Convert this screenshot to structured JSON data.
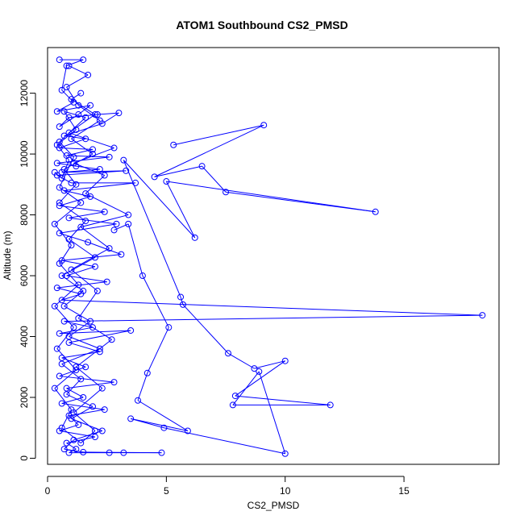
{
  "chart_data": {
    "type": "line",
    "title": "ATOM1 Southbound CS2_PMSD",
    "xlabel": "CS2_PMSD",
    "ylabel": "Altitude (m)",
    "xlim": [
      0,
      19
    ],
    "ylim": [
      -200,
      13500
    ],
    "x_ticks": [
      0,
      5,
      10,
      15
    ],
    "y_ticks": [
      0,
      2000,
      4000,
      6000,
      8000,
      10000,
      12000
    ],
    "marker": "open-circle",
    "line_color": "#0000ff",
    "grid": false,
    "series": [
      {
        "values": [
          [
            0.5,
            13100
          ],
          [
            1.5,
            13100
          ],
          [
            0.8,
            12900
          ],
          [
            0.6,
            12100
          ],
          [
            1.1,
            11700
          ],
          [
            0.4,
            11400
          ],
          [
            1.8,
            11600
          ],
          [
            1.3,
            11300
          ],
          [
            0.5,
            10900
          ],
          [
            0.9,
            11200
          ],
          [
            2.1,
            11300
          ],
          [
            3.0,
            11350
          ],
          [
            2.3,
            11000
          ],
          [
            0.7,
            10600
          ],
          [
            1.6,
            10500
          ],
          [
            0.5,
            10200
          ],
          [
            1.9,
            10150
          ],
          [
            0.8,
            9950
          ],
          [
            2.6,
            9900
          ],
          [
            0.4,
            9700
          ],
          [
            1.2,
            9600
          ],
          [
            2.2,
            9500
          ],
          [
            0.6,
            9400
          ],
          [
            3.3,
            9450
          ],
          [
            0.4,
            9300
          ],
          [
            1.0,
            9050
          ],
          [
            3.7,
            9050
          ],
          [
            0.7,
            8800
          ],
          [
            1.8,
            8600
          ],
          [
            0.5,
            8300
          ],
          [
            2.4,
            8100
          ],
          [
            0.9,
            7900
          ],
          [
            2.9,
            7700
          ],
          [
            0.5,
            7400
          ],
          [
            1.7,
            7100
          ],
          [
            3.1,
            6700
          ],
          [
            0.6,
            6500
          ],
          [
            2.0,
            6300
          ],
          [
            0.8,
            6000
          ],
          [
            2.5,
            5800
          ],
          [
            0.4,
            5600
          ],
          [
            1.4,
            5400
          ],
          [
            0.6,
            5200
          ],
          [
            18.3,
            4700
          ],
          [
            0.7,
            4500
          ],
          [
            1.9,
            4300
          ],
          [
            0.5,
            4100
          ],
          [
            3.5,
            4200
          ],
          [
            0.9,
            3800
          ],
          [
            2.2,
            3500
          ],
          [
            0.6,
            3300
          ],
          [
            1.6,
            3000
          ],
          [
            0.5,
            2700
          ],
          [
            2.8,
            2500
          ],
          [
            0.8,
            2300
          ],
          [
            1.5,
            2000
          ],
          [
            0.6,
            1800
          ],
          [
            2.4,
            1600
          ],
          [
            0.9,
            1400
          ],
          [
            1.3,
            1100
          ],
          [
            0.5,
            900
          ],
          [
            2.0,
            700
          ],
          [
            0.8,
            500
          ],
          [
            1.2,
            300
          ],
          [
            0.9,
            180
          ],
          [
            2.6,
            180
          ],
          [
            3.2,
            180
          ],
          [
            4.8,
            180
          ],
          [
            1.5,
            200
          ],
          [
            0.7,
            300
          ],
          [
            1.1,
            600
          ],
          [
            2.3,
            900
          ],
          [
            1.0,
            1300
          ],
          [
            1.9,
            1700
          ],
          [
            0.8,
            2100
          ],
          [
            1.4,
            2600
          ],
          [
            0.6,
            3100
          ],
          [
            2.2,
            3600
          ],
          [
            0.9,
            4000
          ],
          [
            1.8,
            4500
          ],
          [
            0.7,
            5000
          ],
          [
            1.5,
            5500
          ],
          [
            0.6,
            6000
          ],
          [
            2.0,
            6600
          ],
          [
            0.9,
            7200
          ],
          [
            1.6,
            7800
          ],
          [
            0.5,
            8400
          ],
          [
            1.2,
            9000
          ],
          [
            0.7,
            9500
          ],
          [
            1.9,
            10000
          ],
          [
            1.0,
            10500
          ],
          [
            2.2,
            11100
          ],
          [
            1.3,
            11600
          ],
          [
            0.8,
            12200
          ],
          [
            1.7,
            12600
          ],
          [
            0.9,
            12900
          ]
        ]
      },
      {
        "values": [
          [
            5.3,
            10300
          ],
          [
            9.1,
            10950
          ],
          [
            4.5,
            9250
          ],
          [
            6.5,
            9600
          ],
          [
            7.5,
            8750
          ],
          [
            13.8,
            8100
          ],
          [
            5.0,
            9100
          ],
          [
            6.2,
            7250
          ],
          [
            3.2,
            9800
          ],
          [
            5.6,
            5300
          ],
          [
            5.7,
            5050
          ],
          [
            7.6,
            3450
          ],
          [
            8.7,
            2950
          ],
          [
            10.0,
            3200
          ],
          [
            7.9,
            2050
          ],
          [
            11.9,
            1750
          ],
          [
            7.8,
            1750
          ],
          [
            8.9,
            2850
          ],
          [
            10.0,
            150
          ],
          [
            4.9,
            1000
          ],
          [
            3.5,
            1300
          ],
          [
            5.9,
            900
          ],
          [
            3.8,
            1900
          ],
          [
            4.2,
            2800
          ],
          [
            5.1,
            4300
          ],
          [
            4.0,
            6000
          ],
          [
            3.4,
            7700
          ],
          [
            2.8,
            7500
          ]
        ]
      },
      {
        "values": [
          [
            0.3,
            9400
          ],
          [
            0.6,
            9200
          ],
          [
            0.9,
            9800
          ],
          [
            0.4,
            10300
          ],
          [
            1.2,
            10800
          ],
          [
            0.7,
            11400
          ],
          [
            1.6,
            11200
          ],
          [
            0.5,
            10400
          ],
          [
            1.1,
            9900
          ],
          [
            0.5,
            8900
          ],
          [
            1.4,
            8400
          ],
          [
            0.3,
            7700
          ],
          [
            1.0,
            7000
          ],
          [
            0.5,
            6400
          ],
          [
            1.3,
            5700
          ],
          [
            0.3,
            5000
          ],
          [
            1.1,
            4300
          ],
          [
            0.4,
            3600
          ],
          [
            1.2,
            2900
          ],
          [
            0.3,
            2300
          ],
          [
            1.0,
            1600
          ],
          [
            0.6,
            1000
          ],
          [
            1.4,
            500
          ],
          [
            2.0,
            900
          ],
          [
            1.1,
            1500
          ],
          [
            2.3,
            2300
          ],
          [
            1.2,
            3000
          ],
          [
            2.7,
            3900
          ],
          [
            1.3,
            4600
          ],
          [
            2.1,
            5500
          ],
          [
            1.0,
            6200
          ],
          [
            2.6,
            6900
          ],
          [
            1.4,
            7600
          ],
          [
            3.4,
            8000
          ],
          [
            1.6,
            8700
          ],
          [
            2.4,
            9300
          ],
          [
            1.1,
            9700
          ],
          [
            2.8,
            10200
          ],
          [
            0.9,
            10700
          ],
          [
            2.0,
            11300
          ],
          [
            1.0,
            11800
          ],
          [
            1.4,
            12000
          ]
        ]
      }
    ]
  }
}
